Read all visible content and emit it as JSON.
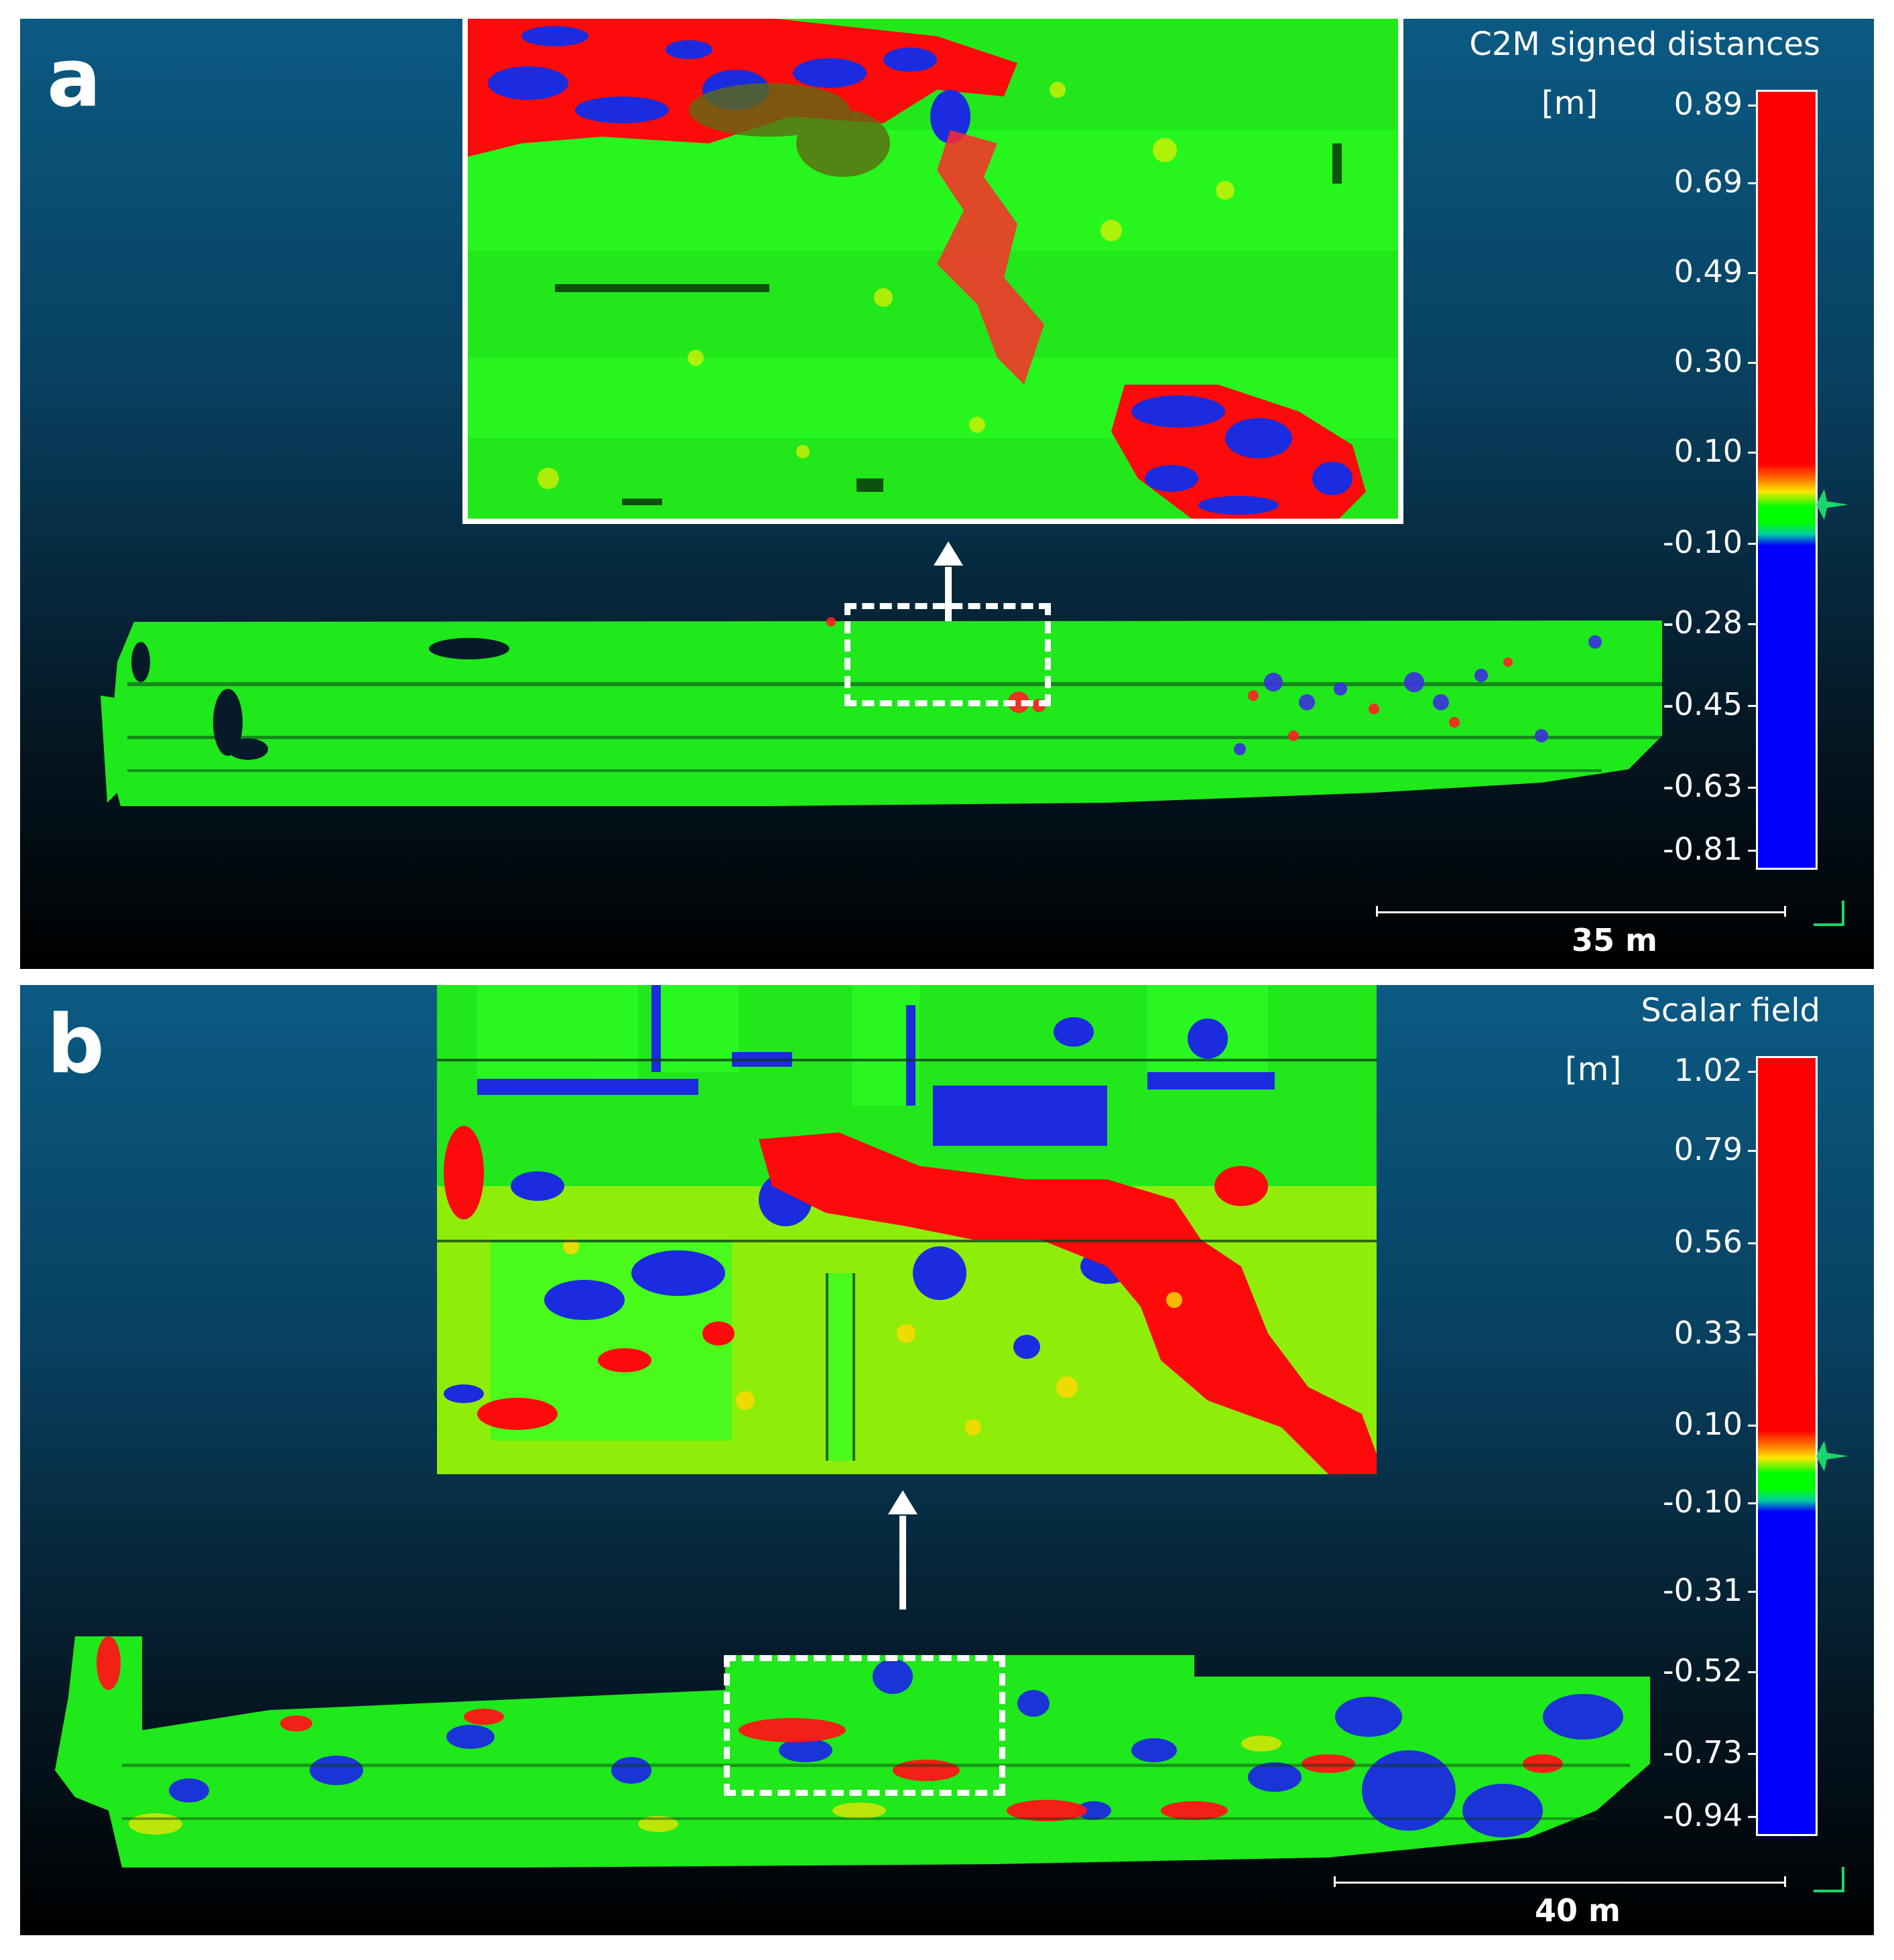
{
  "panels": [
    {
      "letter": "a",
      "colorbar": {
        "title": "C2M signed distances",
        "unit": "[m]",
        "ticks": [
          "0.89",
          "0.69",
          "0.49",
          "0.30",
          "0.10",
          "-0.10",
          "-0.28",
          "-0.45",
          "-0.63",
          "-0.81"
        ]
      },
      "scale_label": "35 m"
    },
    {
      "letter": "b",
      "colorbar": {
        "title": "Scalar field",
        "unit": "[m]",
        "ticks": [
          "1.02",
          "0.79",
          "0.56",
          "0.33",
          "0.10",
          "-0.10",
          "-0.31",
          "-0.52",
          "-0.73",
          "-0.94"
        ]
      },
      "scale_label": "40 m"
    }
  ],
  "colors": {
    "positive": "#ff0000",
    "neutral": "#00ff00",
    "negative": "#0000ff",
    "transition": "#ffe600",
    "axis": "#19d56b"
  }
}
